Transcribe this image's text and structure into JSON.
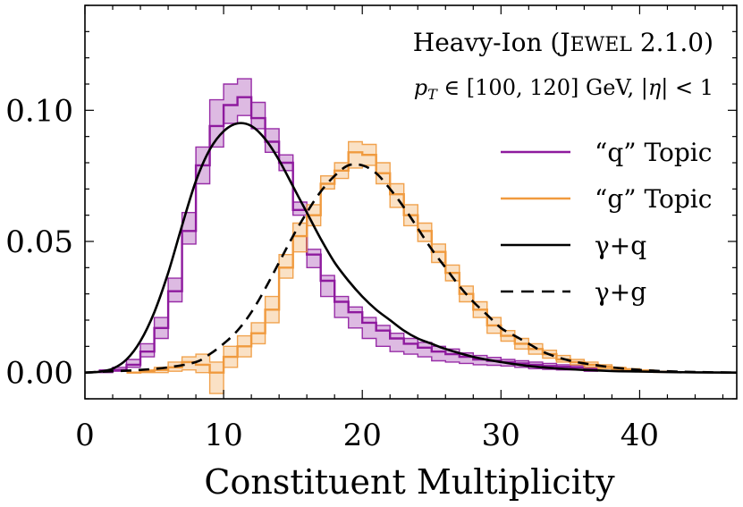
{
  "chart_data": {
    "type": "line",
    "title": "",
    "xlabel": "Constituent Multiplicity",
    "ylabel": "",
    "xlim": [
      0,
      47
    ],
    "ylim": [
      -0.01,
      0.14
    ],
    "grid": false,
    "legend_position": "right",
    "x_ticks": [
      0,
      10,
      20,
      30,
      40
    ],
    "x_tick_labels": [
      "0",
      "10",
      "20",
      "30",
      "40"
    ],
    "y_ticks": [
      0.0,
      0.05,
      0.1
    ],
    "y_tick_labels": [
      "0.00",
      "0.05",
      "0.10"
    ],
    "annotations": [
      "Heavy-Ion (JEWEL 2.1.0)",
      "pT ∈ [100, 120] GeV, |η| < 1"
    ],
    "series": [
      {
        "name": "“q” Topic",
        "style": "step-band",
        "color": "#8e1a9e",
        "bin_edges": [
          1,
          2,
          3,
          4,
          5,
          6,
          7,
          8,
          9,
          10,
          11,
          12,
          13,
          14,
          15,
          16,
          17,
          18,
          19,
          20,
          21,
          22,
          23,
          24,
          25,
          26,
          27,
          28,
          29,
          30,
          31,
          32,
          33,
          34,
          35,
          36,
          37
        ],
        "central": [
          0.0005,
          0.001,
          0.003,
          0.008,
          0.017,
          0.031,
          0.054,
          0.079,
          0.094,
          0.102,
          0.105,
          0.097,
          0.088,
          0.08,
          0.062,
          0.045,
          0.035,
          0.027,
          0.023,
          0.019,
          0.016,
          0.013,
          0.011,
          0.0095,
          0.008,
          0.007,
          0.006,
          0.005,
          0.0045,
          0.004,
          0.0035,
          0.003,
          0.0025,
          0.0022,
          0.002,
          0.0015
        ],
        "upper": [
          0.001,
          0.002,
          0.005,
          0.011,
          0.021,
          0.036,
          0.061,
          0.086,
          0.104,
          0.11,
          0.112,
          0.103,
          0.093,
          0.083,
          0.065,
          0.047,
          0.037,
          0.029,
          0.025,
          0.021,
          0.018,
          0.015,
          0.013,
          0.0115,
          0.01,
          0.009,
          0.0075,
          0.0065,
          0.0058,
          0.005,
          0.0045,
          0.004,
          0.0035,
          0.003,
          0.0028,
          0.002
        ],
        "lower": [
          0.0,
          0.0005,
          0.002,
          0.006,
          0.013,
          0.027,
          0.049,
          0.072,
          0.086,
          0.095,
          0.098,
          0.093,
          0.084,
          0.077,
          0.06,
          0.04,
          0.029,
          0.021,
          0.017,
          0.013,
          0.01,
          0.008,
          0.007,
          0.006,
          0.0045,
          0.004,
          0.0035,
          0.003,
          0.0028,
          0.0025,
          0.002,
          0.0015,
          0.0012,
          0.001,
          0.001,
          0.0005
        ]
      },
      {
        "name": "“g” Topic",
        "style": "step-band",
        "color": "#f09a3e",
        "bin_edges": [
          3,
          4,
          5,
          6,
          7,
          8,
          9,
          10,
          11,
          12,
          13,
          14,
          15,
          16,
          17,
          18,
          19,
          20,
          21,
          22,
          23,
          24,
          25,
          26,
          27,
          28,
          29,
          30,
          31,
          32,
          33,
          34,
          35,
          36,
          37,
          38,
          39,
          40,
          41,
          42
        ],
        "central": [
          0.0,
          0.0005,
          0.001,
          0.002,
          0.004,
          0.003,
          0.0,
          0.006,
          0.01,
          0.015,
          0.024,
          0.04,
          0.052,
          0.06,
          0.072,
          0.077,
          0.084,
          0.083,
          0.076,
          0.068,
          0.06,
          0.054,
          0.046,
          0.038,
          0.03,
          0.024,
          0.018,
          0.014,
          0.011,
          0.009,
          0.007,
          0.005,
          0.004,
          0.003,
          0.0022,
          0.0015,
          0.001,
          0.0005,
          0.0003
        ],
        "upper": [
          0.0,
          0.001,
          0.002,
          0.004,
          0.006,
          0.007,
          0.004,
          0.01,
          0.014,
          0.019,
          0.029,
          0.045,
          0.057,
          0.064,
          0.075,
          0.08,
          0.088,
          0.087,
          0.08,
          0.072,
          0.064,
          0.057,
          0.049,
          0.041,
          0.033,
          0.027,
          0.021,
          0.016,
          0.013,
          0.011,
          0.0085,
          0.0065,
          0.005,
          0.004,
          0.003,
          0.002,
          0.0015,
          0.001,
          0.0005
        ],
        "lower": [
          0.0,
          0.0,
          0.0,
          0.0005,
          0.001,
          0.0,
          -0.008,
          0.002,
          0.006,
          0.011,
          0.019,
          0.036,
          0.046,
          0.056,
          0.07,
          0.074,
          0.078,
          0.079,
          0.072,
          0.063,
          0.056,
          0.05,
          0.042,
          0.035,
          0.027,
          0.021,
          0.015,
          0.012,
          0.009,
          0.007,
          0.0055,
          0.004,
          0.003,
          0.002,
          0.0015,
          0.001,
          0.0005,
          0.0002,
          0.0001
        ]
      },
      {
        "name": "γ+q",
        "style": "solid",
        "color": "#000000",
        "x": [
          0,
          1,
          2,
          3,
          4,
          5,
          6,
          7,
          8,
          9,
          10,
          11,
          12,
          13,
          14,
          15,
          16,
          17,
          18,
          19,
          20,
          21,
          22,
          23,
          24,
          25,
          26,
          28,
          30,
          32,
          34,
          36,
          38,
          40,
          42,
          44,
          47
        ],
        "y": [
          0.0,
          0.0003,
          0.0015,
          0.005,
          0.012,
          0.023,
          0.038,
          0.056,
          0.073,
          0.085,
          0.092,
          0.095,
          0.094,
          0.089,
          0.081,
          0.071,
          0.061,
          0.051,
          0.042,
          0.035,
          0.029,
          0.024,
          0.02,
          0.016,
          0.013,
          0.011,
          0.009,
          0.006,
          0.004,
          0.0025,
          0.0016,
          0.001,
          0.0006,
          0.0004,
          0.0002,
          0.0001,
          0.0
        ]
      },
      {
        "name": "γ+g",
        "style": "dashed",
        "color": "#000000",
        "x": [
          0,
          2,
          4,
          6,
          8,
          9,
          10,
          11,
          12,
          13,
          14,
          15,
          16,
          17,
          18,
          19,
          20,
          21,
          22,
          23,
          24,
          25,
          26,
          27,
          28,
          29,
          30,
          31,
          32,
          33,
          34,
          35,
          36,
          38,
          40,
          42,
          44,
          47
        ],
        "y": [
          0.0,
          0.0005,
          0.001,
          0.002,
          0.004,
          0.007,
          0.011,
          0.016,
          0.023,
          0.032,
          0.042,
          0.052,
          0.061,
          0.069,
          0.075,
          0.079,
          0.079,
          0.076,
          0.07,
          0.063,
          0.055,
          0.047,
          0.04,
          0.033,
          0.027,
          0.022,
          0.017,
          0.014,
          0.011,
          0.008,
          0.006,
          0.0045,
          0.0035,
          0.002,
          0.001,
          0.0005,
          0.0002,
          0.0
        ]
      }
    ]
  },
  "legend": {
    "items": [
      {
        "label": "“q” Topic",
        "color": "#8e1a9e",
        "dash": ""
      },
      {
        "label": "“g” Topic",
        "color": "#f09a3e",
        "dash": ""
      },
      {
        "label": "γ+q",
        "color": "#000000",
        "dash": ""
      },
      {
        "label": "γ+g",
        "color": "#000000",
        "dash": "14 9"
      }
    ]
  },
  "annotation": {
    "line1_a": "Heavy-Ion (",
    "line1_b": "J",
    "line1_c": "EWEL",
    "line1_d": " 2.1.0)",
    "line2_a": "p",
    "line2_b": "T",
    "line2_c": " ∈ [100, 120] GeV, |",
    "line2_d": "η",
    "line2_e": "| < 1"
  }
}
